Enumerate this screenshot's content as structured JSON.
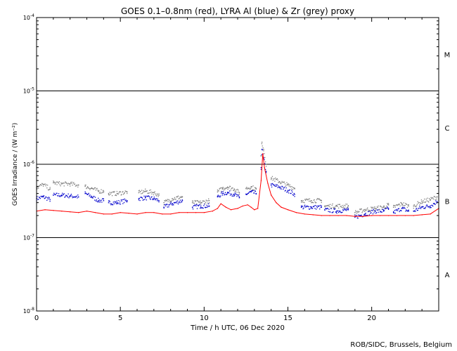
{
  "chart_data": {
    "type": "scatter",
    "title": "GOES 0.1–0.8nm (red), LYRA Al (blue) & Zr (grey) proxy",
    "xlabel": "Time / h UTC, 06 Dec 2020",
    "ylabel": "GOES Irradiance / (W m⁻²)",
    "xlim": [
      0,
      24
    ],
    "ylim": [
      1e-08,
      0.0001
    ],
    "yscale": "log",
    "x_ticks": [
      0,
      5,
      10,
      15,
      20
    ],
    "x_tick_labels": [
      "0",
      "5",
      "10",
      "15",
      "20"
    ],
    "y_ticks": [
      1e-08,
      1e-07,
      1e-06,
      1e-05,
      0.0001
    ],
    "y_tick_labels": [
      {
        "base": "10",
        "exp": "-8"
      },
      {
        "base": "10",
        "exp": "-7"
      },
      {
        "base": "10",
        "exp": "-6"
      },
      {
        "base": "10",
        "exp": "-5"
      },
      {
        "base": "10",
        "exp": "-4"
      }
    ],
    "threshold_lines": [
      1e-07,
      1e-06,
      1e-05
    ],
    "flare_classes": [
      {
        "label": "A",
        "y": 3.16e-08
      },
      {
        "label": "B",
        "y": 3.16e-07
      },
      {
        "label": "C",
        "y": 3.16e-06
      },
      {
        "label": "M",
        "y": 3.16e-05
      }
    ],
    "series": [
      {
        "name": "GOES 0.1–0.8nm",
        "color": "#ff0000",
        "style": "dense",
        "x": [
          0,
          0.5,
          1,
          1.5,
          2,
          2.5,
          3,
          3.5,
          4,
          4.5,
          5,
          5.5,
          6,
          6.5,
          7,
          7.5,
          8,
          8.5,
          9,
          9.5,
          10,
          10.5,
          10.8,
          11.0,
          11.3,
          11.6,
          12,
          12.3,
          12.6,
          12.8,
          13.0,
          13.2,
          13.4,
          13.5,
          13.6,
          13.8,
          14.0,
          14.3,
          14.6,
          15,
          15.5,
          16,
          16.5,
          17,
          17.5,
          18,
          18.5,
          19,
          19.5,
          20,
          20.5,
          21,
          21.5,
          22,
          22.5,
          23,
          23.5,
          24
        ],
        "y": [
          2.3e-07,
          2.4e-07,
          2.35e-07,
          2.3e-07,
          2.25e-07,
          2.2e-07,
          2.3e-07,
          2.2e-07,
          2.1e-07,
          2.1e-07,
          2.2e-07,
          2.15e-07,
          2.1e-07,
          2.2e-07,
          2.2e-07,
          2.1e-07,
          2.1e-07,
          2.2e-07,
          2.2e-07,
          2.2e-07,
          2.2e-07,
          2.3e-07,
          2.5e-07,
          2.9e-07,
          2.6e-07,
          2.4e-07,
          2.5e-07,
          2.7e-07,
          2.8e-07,
          2.6e-07,
          2.4e-07,
          2.5e-07,
          6e-07,
          1.4e-06,
          9e-07,
          5.5e-07,
          3.8e-07,
          3e-07,
          2.6e-07,
          2.4e-07,
          2.2e-07,
          2.1e-07,
          2.05e-07,
          2e-07,
          2e-07,
          2e-07,
          2e-07,
          1.95e-07,
          1.95e-07,
          2e-07,
          2e-07,
          2e-07,
          2e-07,
          2e-07,
          2e-07,
          2.05e-07,
          2.1e-07,
          2.5e-07
        ]
      },
      {
        "name": "LYRA Al proxy",
        "color": "#0000cc",
        "style": "sparse",
        "segments": [
          {
            "x": [
              0.0,
              0.4,
              0.8
            ],
            "y": [
              3.4e-07,
              3.6e-07,
              3.3e-07
            ]
          },
          {
            "x": [
              1.0,
              1.5,
              2.0,
              2.5
            ],
            "y": [
              3.8e-07,
              3.8e-07,
              3.7e-07,
              3.6e-07
            ]
          },
          {
            "x": [
              2.9,
              3.3,
              3.7,
              4.0
            ],
            "y": [
              4e-07,
              3.6e-07,
              3.2e-07,
              3.2e-07
            ]
          },
          {
            "x": [
              4.3,
              4.8,
              5.4
            ],
            "y": [
              3e-07,
              3e-07,
              3.2e-07
            ]
          },
          {
            "x": [
              6.1,
              6.5,
              7.0,
              7.3
            ],
            "y": [
              3.4e-07,
              3.5e-07,
              3.4e-07,
              3.2e-07
            ]
          },
          {
            "x": [
              7.6,
              8.1,
              8.7
            ],
            "y": [
              2.6e-07,
              2.9e-07,
              3.2e-07
            ]
          },
          {
            "x": [
              9.3,
              9.8,
              10.3
            ],
            "y": [
              2.6e-07,
              2.7e-07,
              2.7e-07
            ]
          },
          {
            "x": [
              10.8,
              11.1,
              11.4,
              11.8,
              12.1
            ],
            "y": [
              3.6e-07,
              4e-07,
              4.1e-07,
              3.9e-07,
              3.5e-07
            ]
          },
          {
            "x": [
              12.5,
              12.8,
              13.1
            ],
            "y": [
              3.9e-07,
              4.2e-07,
              4e-07
            ]
          },
          {
            "x": [
              13.4,
              13.45,
              13.55,
              13.7
            ],
            "y": [
              9e-07,
              1.6e-06,
              1.2e-06,
              8e-07
            ]
          },
          {
            "x": [
              14.0,
              14.5,
              15.0,
              15.4
            ],
            "y": [
              5.2e-07,
              4.9e-07,
              4.4e-07,
              3.9e-07
            ]
          },
          {
            "x": [
              15.8,
              16.4,
              17.0
            ],
            "y": [
              2.6e-07,
              2.6e-07,
              2.6e-07
            ]
          },
          {
            "x": [
              17.2,
              17.9,
              18.6
            ],
            "y": [
              2.4e-07,
              2.3e-07,
              2.4e-07
            ]
          },
          {
            "x": [
              19.0,
              19.6,
              20.2,
              20.7,
              21.0
            ],
            "y": [
              1.9e-07,
              2.1e-07,
              2.3e-07,
              2.3e-07,
              2.5e-07
            ]
          },
          {
            "x": [
              21.3,
              21.8,
              22.2
            ],
            "y": [
              2.2e-07,
              2.5e-07,
              2.3e-07
            ]
          },
          {
            "x": [
              22.5,
              23.0,
              23.5,
              23.9
            ],
            "y": [
              2.3e-07,
              2.6e-07,
              2.7e-07,
              3.1e-07
            ]
          }
        ]
      },
      {
        "name": "LYRA Zr proxy",
        "color": "#808080",
        "style": "sparse",
        "segments": [
          {
            "x": [
              0.0,
              0.4,
              0.8
            ],
            "y": [
              4.8e-07,
              5.3e-07,
              4.6e-07
            ]
          },
          {
            "x": [
              1.0,
              1.5,
              2.0,
              2.5
            ],
            "y": [
              5.6e-07,
              5.4e-07,
              5.4e-07,
              5.2e-07
            ]
          },
          {
            "x": [
              2.9,
              3.3,
              3.7,
              4.0
            ],
            "y": [
              5e-07,
              4.7e-07,
              4.3e-07,
              4.3e-07
            ]
          },
          {
            "x": [
              4.3,
              4.8,
              5.4
            ],
            "y": [
              4e-07,
              4e-07,
              4.2e-07
            ]
          },
          {
            "x": [
              6.1,
              6.5,
              7.0,
              7.3
            ],
            "y": [
              4.1e-07,
              4.3e-07,
              4.1e-07,
              3.8e-07
            ]
          },
          {
            "x": [
              7.6,
              8.1,
              8.7
            ],
            "y": [
              3e-07,
              3.4e-07,
              3.6e-07
            ]
          },
          {
            "x": [
              9.3,
              9.8,
              10.3
            ],
            "y": [
              3e-07,
              3e-07,
              3.2e-07
            ]
          },
          {
            "x": [
              10.8,
              11.1,
              11.4,
              11.8,
              12.1
            ],
            "y": [
              4.2e-07,
              4.7e-07,
              4.9e-07,
              4.6e-07,
              4.1e-07
            ]
          },
          {
            "x": [
              12.5,
              12.8,
              13.1
            ],
            "y": [
              4.7e-07,
              4.9e-07,
              4.6e-07
            ]
          },
          {
            "x": [
              13.4,
              13.45,
              13.55,
              13.7
            ],
            "y": [
              1.3e-06,
              2e-06,
              1.6e-06,
              1e-06
            ]
          },
          {
            "x": [
              14.0,
              14.5,
              15.0,
              15.4
            ],
            "y": [
              6.5e-07,
              5.8e-07,
              5.2e-07,
              4.7e-07
            ]
          },
          {
            "x": [
              15.8,
              16.4,
              17.0
            ],
            "y": [
              3.2e-07,
              3.2e-07,
              3.2e-07
            ]
          },
          {
            "x": [
              17.2,
              17.9,
              18.6
            ],
            "y": [
              2.7e-07,
              2.7e-07,
              2.7e-07
            ]
          },
          {
            "x": [
              19.0,
              19.6,
              20.2,
              20.7,
              21.0
            ],
            "y": [
              2.2e-07,
              2.4e-07,
              2.5e-07,
              2.6e-07,
              2.8e-07
            ]
          },
          {
            "x": [
              21.3,
              21.8,
              22.2
            ],
            "y": [
              2.6e-07,
              2.9e-07,
              2.7e-07
            ]
          },
          {
            "x": [
              22.5,
              23.0,
              23.5,
              23.9
            ],
            "y": [
              2.7e-07,
              3.1e-07,
              3.3e-07,
              3.6e-07
            ]
          }
        ]
      }
    ]
  },
  "credit": "ROB/SIDC, Brussels, Belgium"
}
